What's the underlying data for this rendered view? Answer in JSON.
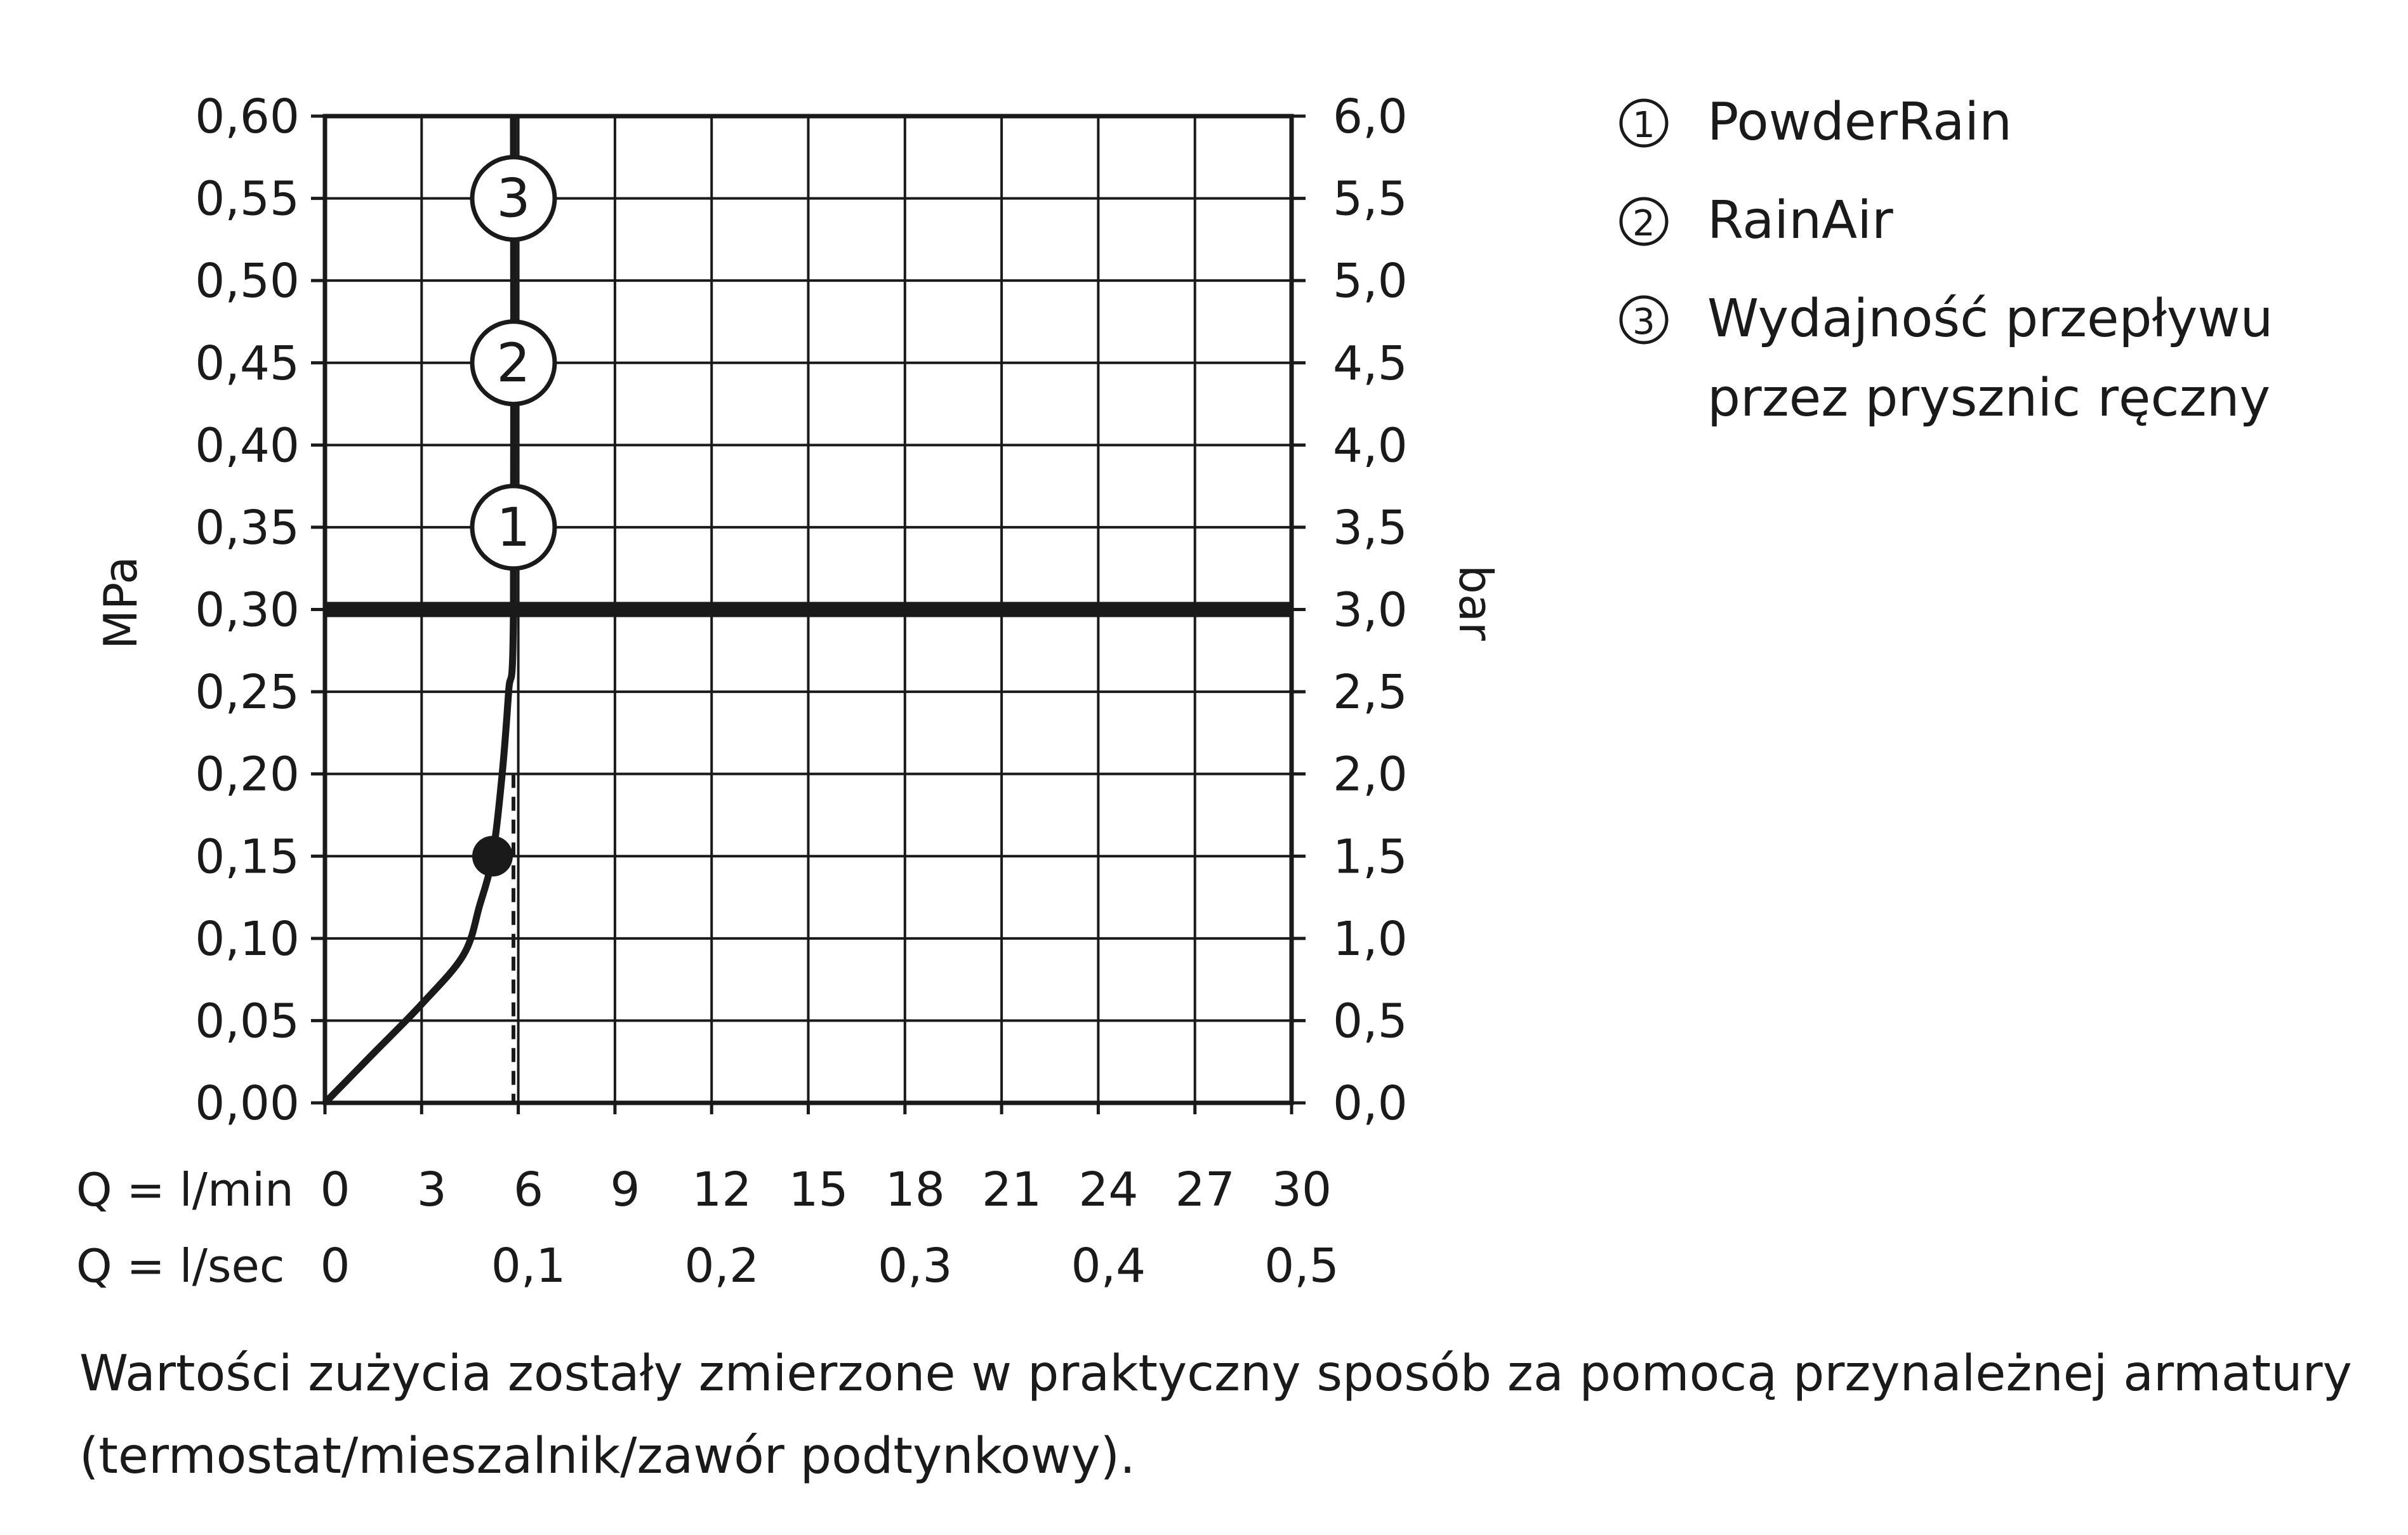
{
  "chart_data": {
    "type": "line",
    "ylabel_left": "MPa",
    "ylabel_right": "bar",
    "xlabel_lmin": "Q = l/min",
    "xlabel_lsec": "Q = l/sec",
    "y_ticks_left": [
      "0,00",
      "0,05",
      "0,10",
      "0,15",
      "0,20",
      "0,25",
      "0,30",
      "0,35",
      "0,40",
      "0,45",
      "0,50",
      "0,55",
      "0,60"
    ],
    "y_ticks_right": [
      "0,0",
      "0,5",
      "1,0",
      "1,5",
      "2,0",
      "2,5",
      "3,0",
      "3,5",
      "4,0",
      "4,5",
      "5,0",
      "5,5",
      "6,0"
    ],
    "x_ticks_lmin": [
      "0",
      "3",
      "6",
      "9",
      "12",
      "15",
      "18",
      "21",
      "24",
      "27",
      "30"
    ],
    "x_ticks_lsec": [
      "0",
      "0,1",
      "0,2",
      "0,3",
      "0,4",
      "0,5"
    ],
    "xlim_lmin": [
      0,
      30
    ],
    "ylim_mpa": [
      0,
      0.6
    ],
    "grid": true,
    "reference_line_mpa": 0.3,
    "series": [
      {
        "values": [
          {
            "x": 0,
            "y": 0
          },
          {
            "x": 1.5,
            "y": 0.03
          },
          {
            "x": 3.0,
            "y": 0.06
          },
          {
            "x": 4.3,
            "y": 0.09
          },
          {
            "x": 4.8,
            "y": 0.12
          },
          {
            "x": 5.2,
            "y": 0.15
          },
          {
            "x": 5.5,
            "y": 0.2
          },
          {
            "x": 5.7,
            "y": 0.25
          },
          {
            "x": 5.85,
            "y": 0.3
          },
          {
            "x": 5.85,
            "y": 0.6
          }
        ]
      }
    ],
    "marker_point": {
      "x": 5.2,
      "y": 0.15
    },
    "dashed_line_x": 5.85,
    "circled_markers": [
      {
        "label": "1",
        "x": 5.85,
        "y": 0.35
      },
      {
        "label": "2",
        "x": 5.85,
        "y": 0.45
      },
      {
        "label": "3",
        "x": 5.85,
        "y": 0.55
      }
    ]
  },
  "legend": [
    {
      "num": "1",
      "lines": [
        "PowderRain"
      ]
    },
    {
      "num": "2",
      "lines": [
        "RainAir"
      ]
    },
    {
      "num": "3",
      "lines": [
        "Wydajność przepływu",
        "przez prysznic ręczny"
      ]
    }
  ],
  "note_lines": [
    "Wartości zużycia zostały zmierzone w praktyczny sposób za pomocą przynależnej armatury",
    "(termostat/mieszalnik/zawór podtynkowy)."
  ]
}
